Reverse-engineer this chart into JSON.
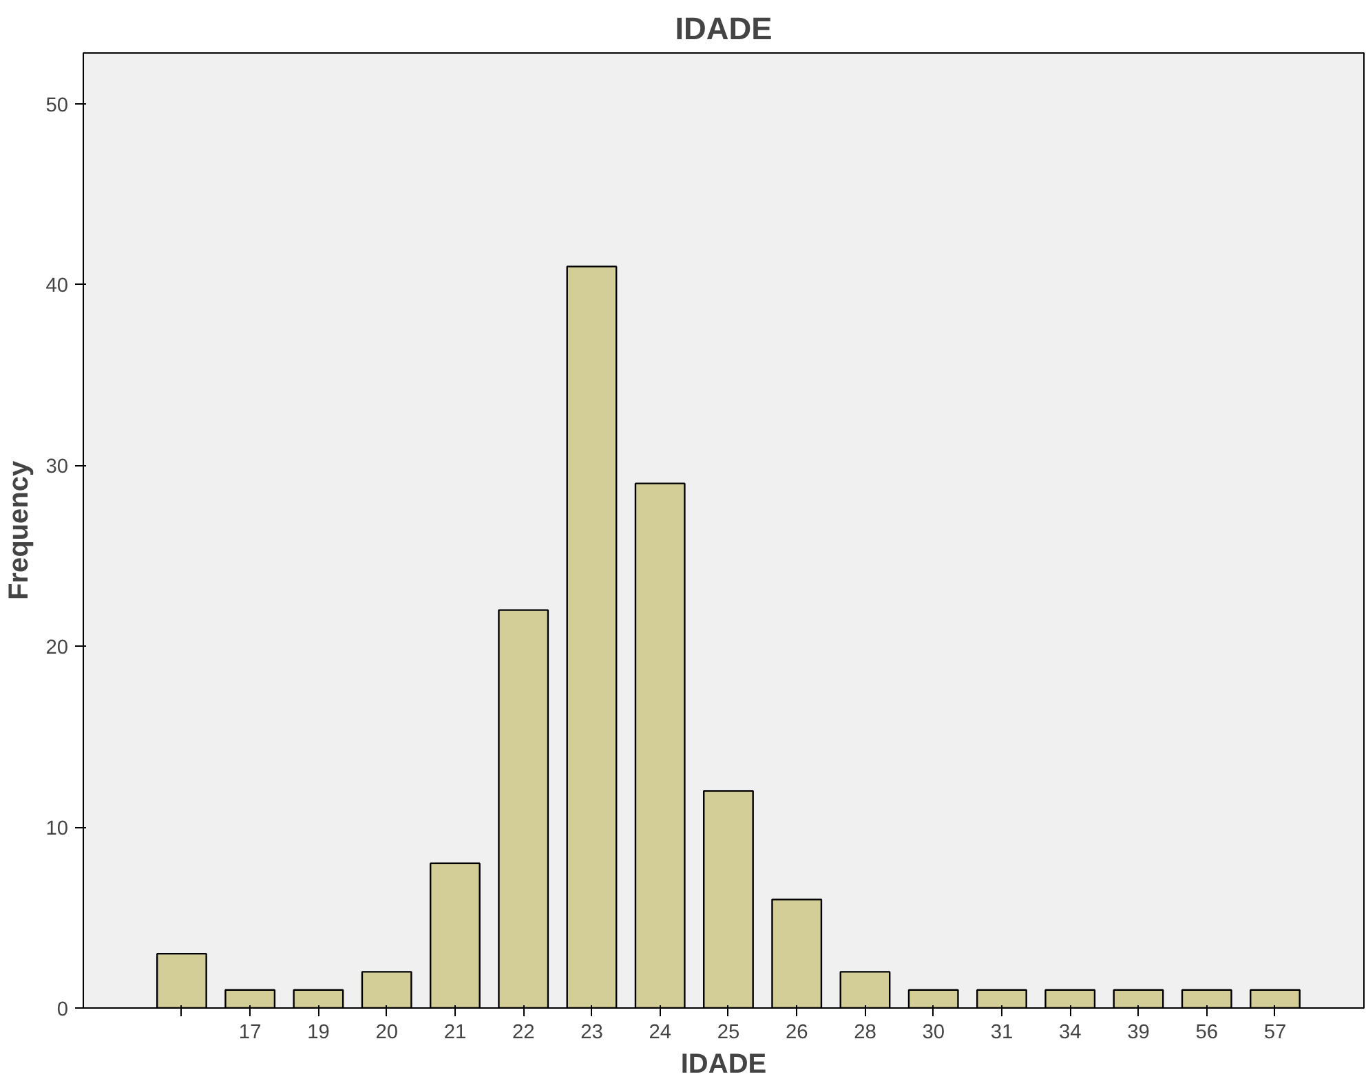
{
  "chart_data": {
    "type": "bar",
    "title": "IDADE",
    "xlabel": "IDADE",
    "ylabel": "Frequency",
    "categories": [
      null,
      "17",
      "19",
      "20",
      "21",
      "22",
      "23",
      "24",
      "25",
      "26",
      "28",
      "30",
      "31",
      "34",
      "39",
      "56",
      "57"
    ],
    "values": [
      3,
      1,
      1,
      2,
      8,
      22,
      41,
      29,
      12,
      6,
      2,
      1,
      1,
      1,
      1,
      1,
      1
    ],
    "color": "#d3ce97",
    "ylim": [
      0,
      52.8
    ],
    "yticks": [
      0,
      10,
      20,
      30,
      40,
      50
    ],
    "grid": false
  }
}
